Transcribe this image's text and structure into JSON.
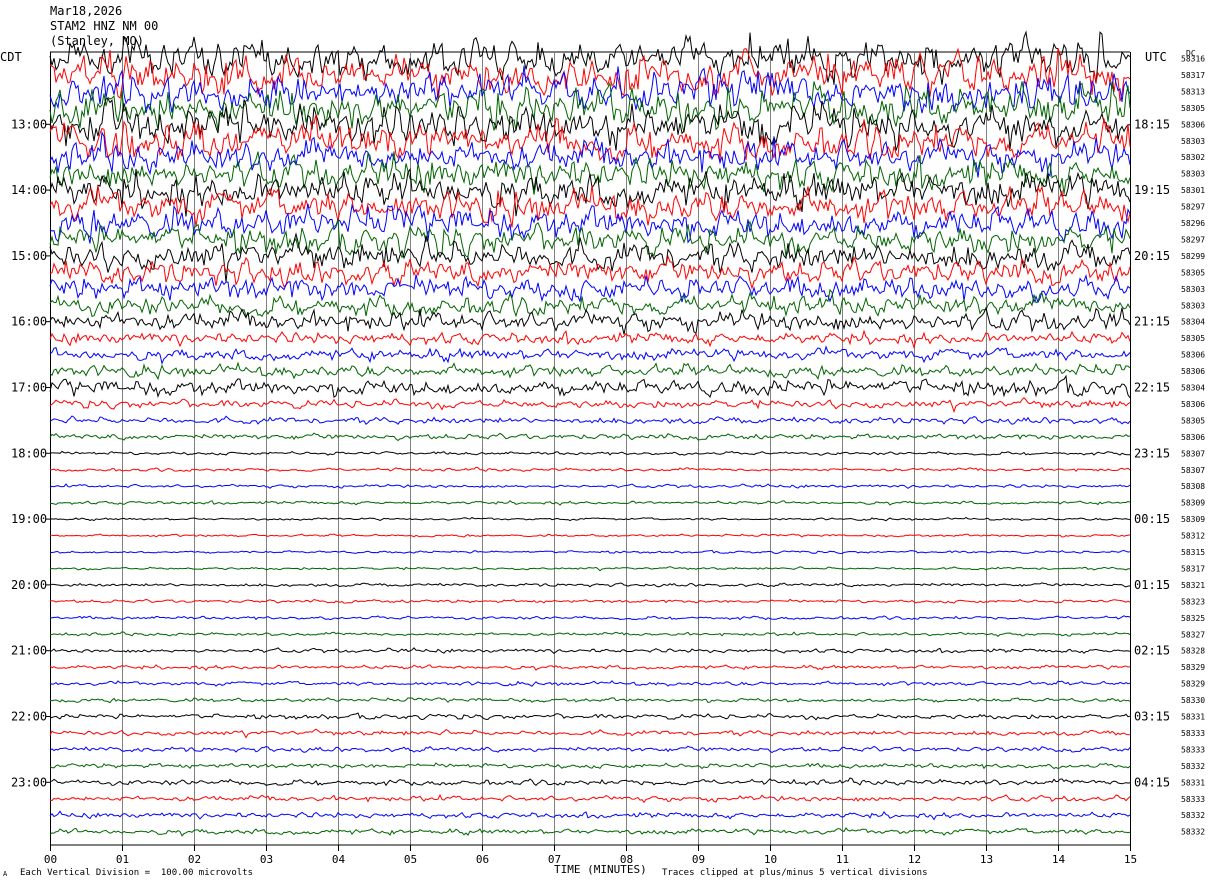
{
  "header": {
    "date": "Mar18,2026",
    "station": "STAM2 HNZ NM 00",
    "location": "(Stanley, MO)"
  },
  "left_timezone": "CDT",
  "right_timezone": "UTC",
  "dc_label": "DC",
  "footer": {
    "scale_note": "Each Vertical Division =  100.00 microvolts",
    "xlabel": "TIME (MINUTES)",
    "clip_note": "Traces clipped at plus/minus 5 vertical divisions",
    "corner_mark": "A"
  },
  "colors": {
    "background": "#ffffff",
    "grid": "#808080",
    "trace_cycle": [
      "#000000",
      "#ff0000",
      "#0000ff",
      "#006400"
    ]
  },
  "chart_data": {
    "type": "line",
    "title": "STAM2 HNZ NM 00",
    "xlabel": "TIME (MINUTES)",
    "xlim": [
      0,
      15
    ],
    "x_ticks": [
      "00",
      "01",
      "02",
      "03",
      "04",
      "05",
      "06",
      "07",
      "08",
      "09",
      "10",
      "11",
      "12",
      "13",
      "14",
      "15"
    ],
    "trace_interval_minutes": 15,
    "left_hour_labels": [
      "13:00",
      "14:00",
      "15:00",
      "16:00",
      "17:00",
      "18:00",
      "19:00",
      "20:00",
      "21:00",
      "22:00",
      "23:00"
    ],
    "right_hour_labels": [
      "18:15",
      "19:15",
      "20:15",
      "21:15",
      "22:15",
      "23:15",
      "00:15",
      "01:15",
      "02:15",
      "03:15",
      "04:15"
    ],
    "dc_offsets": [
      58316,
      58317,
      58313,
      58305,
      58306,
      58303,
      58302,
      58303,
      58301,
      58297,
      58296,
      58297,
      58299,
      58305,
      58303,
      58303,
      58304,
      58305,
      58306,
      58306,
      58304,
      58306,
      58305,
      58306,
      58307,
      58307,
      58308,
      58309,
      58309,
      58312,
      58315,
      58317,
      58321,
      58323,
      58325,
      58327,
      58328,
      58329,
      58329,
      58330,
      58331,
      58333,
      58333,
      58332,
      58331,
      58333,
      58332,
      58332
    ],
    "amplitude_divisions": [
      5,
      5,
      5,
      5,
      5,
      4.5,
      4,
      4,
      4.5,
      4,
      4,
      3.5,
      3.5,
      3,
      3,
      2.5,
      2.5,
      1.5,
      1.5,
      1.5,
      2,
      1,
      0.8,
      0.7,
      0.4,
      0.4,
      0.4,
      0.4,
      0.3,
      0.3,
      0.3,
      0.3,
      0.4,
      0.4,
      0.4,
      0.4,
      0.5,
      0.5,
      0.5,
      0.5,
      0.6,
      0.6,
      0.6,
      0.6,
      0.7,
      0.7,
      0.7,
      0.7
    ],
    "clip_divisions": 5,
    "grid": true
  }
}
